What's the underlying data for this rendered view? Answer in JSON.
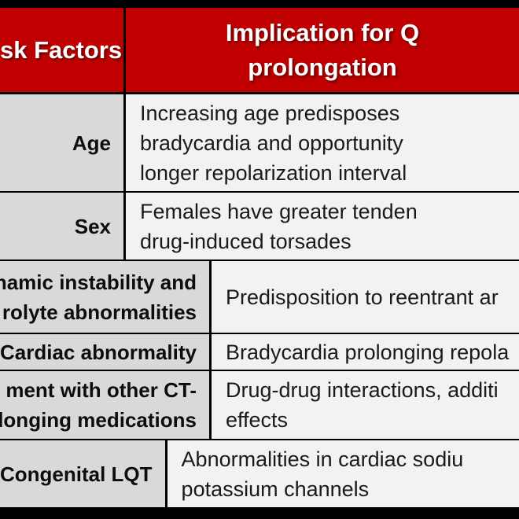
{
  "table": {
    "title_semantic": "QT prolongation risk factor table (cropped screenshot)",
    "colors": {
      "header_bg": "#c00000",
      "header_text": "#ffffff",
      "factor_col_bg": "#d9d9d9",
      "implication_col_bg": "#f2f2f2",
      "border": "#000000"
    },
    "header": {
      "factor_col": "sk Factors",
      "implication_col": "Implication for Q\nprolongation"
    },
    "rows": [
      {
        "factor": "Age",
        "implication": "Increasing age predisposes\nbradycardia and opportunity\nlonger repolarization interval"
      },
      {
        "factor": "Sex",
        "implication": "Females have greater tenden\ndrug-induced torsades"
      },
      {
        "factor": "namic instability and\nrolyte abnormalities",
        "implication": "Predisposition to reentrant ar"
      },
      {
        "factor": "Cardiac abnormality",
        "implication": "Bradycardia prolonging repola"
      },
      {
        "factor": "ment with other CT-\nlonging medications",
        "implication": "Drug-drug interactions, additi\neffects"
      },
      {
        "factor": "Congenital LQT",
        "implication": "Abnormalities in cardiac sodiu\npotassium channels"
      }
    ]
  }
}
